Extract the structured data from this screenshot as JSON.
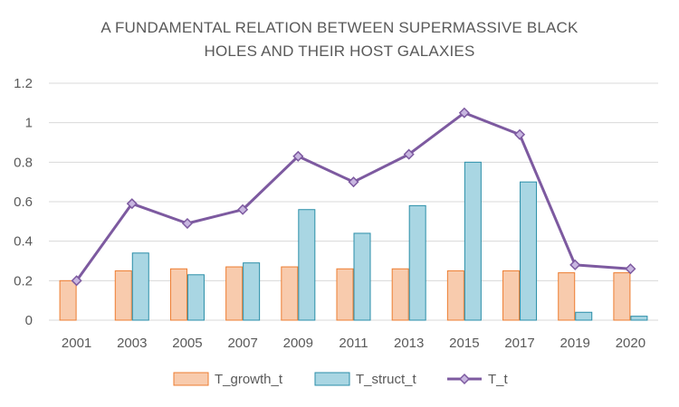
{
  "chart_data": {
    "type": "bar",
    "title_lines": [
      "A FUNDAMENTAL RELATION BETWEEN SUPERMASSIVE BLACK",
      "HOLES AND THEIR HOST GALAXIES"
    ],
    "categories": [
      "2001",
      "2003",
      "2005",
      "2007",
      "2009",
      "2011",
      "2013",
      "2015",
      "2017",
      "2019",
      "2020"
    ],
    "series": [
      {
        "name": "T_growth_t",
        "kind": "bar",
        "fill": "#f8cbad",
        "stroke": "#ed7d31",
        "values": [
          0.2,
          0.25,
          0.26,
          0.27,
          0.27,
          0.26,
          0.26,
          0.25,
          0.25,
          0.24,
          0.24
        ]
      },
      {
        "name": "T_struct_t",
        "kind": "bar",
        "fill": "#a9d6e3",
        "stroke": "#2a8ea8",
        "values": [
          null,
          0.34,
          0.23,
          0.29,
          0.56,
          0.44,
          0.58,
          0.8,
          0.7,
          0.04,
          0.02
        ]
      },
      {
        "name": "T_t",
        "kind": "line",
        "stroke": "#7d5aa0",
        "marker_fill": "#c8b6e0",
        "values": [
          0.2,
          0.59,
          0.49,
          0.56,
          0.83,
          0.7,
          0.84,
          1.05,
          0.94,
          0.28,
          0.26
        ]
      }
    ],
    "y_ticks": [
      "0",
      "0.2",
      "0.4",
      "0.6",
      "0.8",
      "1",
      "1.2"
    ],
    "ylim": [
      0,
      1.2
    ],
    "grid": true,
    "legend_position": "bottom"
  }
}
